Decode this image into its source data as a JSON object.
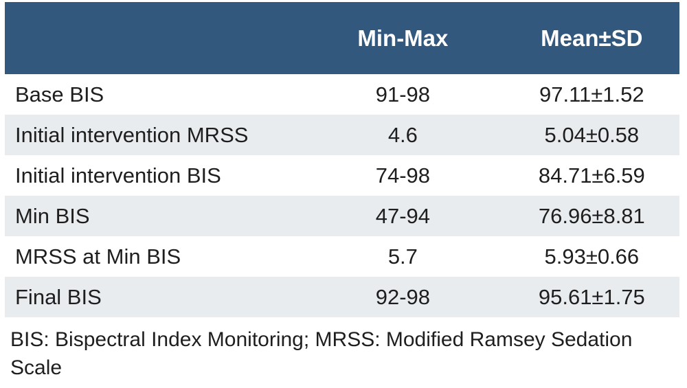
{
  "table": {
    "columns": [
      "Min-Max",
      "Mean±SD"
    ],
    "rows": [
      {
        "label": "Base BIS",
        "min_max": "91-98",
        "mean_sd": "97.11±1.52"
      },
      {
        "label": "Initial intervention MRSS",
        "min_max": "4.6",
        "mean_sd": "5.04±0.58"
      },
      {
        "label": "Initial intervention BIS",
        "min_max": "74-98",
        "mean_sd": "84.71±6.59"
      },
      {
        "label": "Min BIS",
        "min_max": "47-94",
        "mean_sd": "76.96±8.81"
      },
      {
        "label": "MRSS at Min BIS",
        "min_max": "5.7",
        "mean_sd": "5.93±0.66"
      },
      {
        "label": "Final BIS",
        "min_max": "92-98",
        "mean_sd": "95.61±1.75"
      }
    ]
  },
  "footnote": "BIS: Bispectral Index Monitoring; MRSS: Modified Ramsey Sedation Scale",
  "colors": {
    "header_bg": "#33587D",
    "row_alt_bg": "#E9ECEE",
    "header_text": "#FFFFFF",
    "body_text": "#1E1E1E"
  }
}
